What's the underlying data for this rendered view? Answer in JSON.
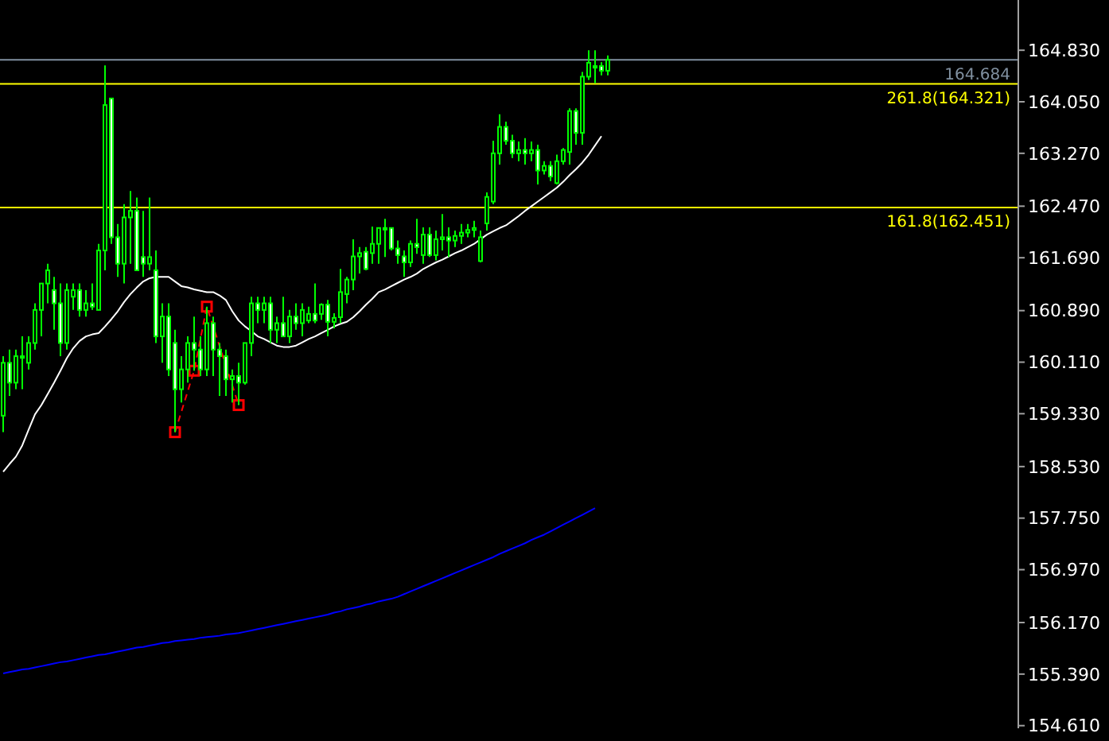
{
  "chart_data": {
    "type": "candlestick",
    "color": "#00ff00",
    "tick_labels": "y",
    "categories": [
      null,
      null,
      null,
      null,
      null,
      null,
      null,
      null,
      null,
      null,
      null,
      null,
      null,
      null,
      null,
      null,
      null,
      null,
      null,
      null,
      null,
      null,
      null,
      null,
      null,
      null,
      null,
      null,
      null,
      null,
      null,
      null,
      null,
      null,
      null,
      null,
      null,
      null,
      null,
      null,
      null,
      null,
      null,
      null,
      null,
      null,
      null,
      null,
      null,
      null,
      null,
      null,
      null,
      null,
      null,
      null,
      null,
      null,
      null,
      null,
      null,
      null,
      null,
      null,
      null,
      null,
      null,
      null,
      null,
      null,
      null,
      null,
      null,
      null,
      null,
      null,
      null,
      null,
      null,
      null,
      null,
      null,
      null,
      null,
      null,
      null,
      null,
      null,
      null,
      null,
      null,
      null,
      null,
      null,
      null,
      null,
      null,
      null,
      null,
      null,
      null,
      null,
      null,
      null,
      null,
      null,
      null,
      null,
      null,
      null,
      null,
      null,
      null,
      null,
      null,
      null,
      null,
      null,
      null,
      null,
      null,
      null,
      null,
      null,
      null,
      null,
      null,
      null,
      null,
      null,
      null,
      null,
      null,
      null,
      null,
      null,
      null,
      null,
      null,
      null,
      null,
      null,
      null,
      null,
      null,
      null,
      null,
      null,
      null,
      null,
      null,
      null,
      null,
      null,
      null,
      null,
      null,
      null,
      null,
      null
    ],
    "ohlc": [
      [
        159.3,
        160.2,
        159.05,
        160.1
      ],
      [
        160.1,
        160.3,
        159.6,
        159.8
      ],
      [
        159.8,
        160.3,
        159.7,
        160.2
      ],
      [
        160.2,
        160.5,
        159.7,
        160.2
      ],
      [
        160.1,
        160.5,
        160.0,
        160.4
      ],
      [
        160.4,
        161.0,
        160.3,
        160.9
      ],
      [
        160.9,
        161.3,
        160.5,
        161.3
      ],
      [
        161.3,
        161.6,
        161.0,
        161.5
      ],
      [
        161.2,
        161.4,
        160.6,
        161.0
      ],
      [
        161.0,
        161.3,
        160.2,
        160.4
      ],
      [
        160.4,
        161.3,
        160.3,
        161.2
      ],
      [
        161.1,
        161.3,
        160.9,
        161.2
      ],
      [
        161.2,
        161.3,
        160.8,
        160.9
      ],
      [
        160.9,
        161.2,
        160.8,
        161.0
      ],
      [
        161.0,
        161.3,
        160.9,
        160.95
      ],
      [
        160.9,
        161.9,
        160.9,
        161.8
      ],
      [
        161.8,
        164.6,
        161.5,
        164.0
      ],
      [
        164.1,
        164.1,
        161.9,
        162.0
      ],
      [
        162.0,
        162.2,
        161.4,
        161.6
      ],
      [
        161.6,
        162.5,
        161.3,
        162.3
      ],
      [
        162.3,
        162.7,
        161.6,
        162.4
      ],
      [
        162.4,
        162.6,
        161.5,
        161.5
      ],
      [
        161.7,
        162.4,
        161.4,
        161.6
      ],
      [
        161.6,
        162.6,
        161.5,
        161.7
      ],
      [
        161.5,
        161.8,
        160.4,
        160.5
      ],
      [
        160.5,
        161.0,
        160.1,
        160.8
      ],
      [
        160.8,
        161.0,
        159.9,
        160.0
      ],
      [
        160.4,
        160.6,
        159.05,
        159.7
      ],
      [
        159.7,
        160.2,
        159.5,
        160.0
      ],
      [
        160.0,
        160.5,
        159.8,
        160.4
      ],
      [
        160.4,
        160.8,
        159.98,
        160.3
      ],
      [
        160.3,
        160.5,
        159.9,
        160.0
      ],
      [
        160.0,
        160.95,
        159.9,
        160.7
      ],
      [
        160.7,
        160.8,
        159.9,
        160.3
      ],
      [
        160.3,
        160.4,
        159.6,
        160.2
      ],
      [
        160.2,
        160.3,
        159.6,
        159.85
      ],
      [
        159.85,
        160.0,
        159.5,
        159.9
      ],
      [
        159.9,
        160.1,
        159.46,
        159.8
      ],
      [
        159.8,
        160.4,
        159.77,
        160.4
      ],
      [
        160.4,
        161.1,
        160.2,
        161.0
      ],
      [
        161.0,
        161.1,
        160.7,
        160.9
      ],
      [
        160.9,
        161.1,
        160.7,
        161.0
      ],
      [
        161.0,
        161.1,
        160.4,
        160.6
      ],
      [
        160.6,
        160.8,
        160.4,
        160.7
      ],
      [
        160.7,
        161.1,
        160.5,
        160.5
      ],
      [
        160.5,
        160.9,
        160.4,
        160.8
      ],
      [
        160.8,
        161.0,
        160.6,
        160.7
      ],
      [
        160.7,
        161.0,
        160.5,
        160.9
      ],
      [
        160.74,
        160.95,
        160.7,
        160.84
      ],
      [
        160.84,
        161.3,
        160.7,
        160.74
      ],
      [
        160.84,
        161.0,
        160.75,
        160.98
      ],
      [
        160.98,
        161.05,
        160.5,
        160.72
      ],
      [
        160.72,
        160.85,
        160.62,
        160.78
      ],
      [
        160.79,
        161.52,
        160.7,
        161.17
      ],
      [
        161.14,
        161.4,
        161.0,
        161.36
      ],
      [
        161.36,
        161.97,
        161.2,
        161.71
      ],
      [
        161.71,
        161.85,
        161.45,
        161.76
      ],
      [
        161.78,
        161.85,
        161.5,
        161.52
      ],
      [
        161.76,
        162.16,
        161.6,
        161.9
      ],
      [
        161.9,
        162.14,
        161.6,
        162.14
      ],
      [
        162.14,
        162.28,
        161.7,
        162.14
      ],
      [
        162.14,
        162.14,
        161.8,
        161.83
      ],
      [
        161.83,
        161.95,
        161.6,
        161.73
      ],
      [
        161.71,
        161.8,
        161.4,
        161.62
      ],
      [
        161.62,
        161.95,
        161.55,
        161.9
      ],
      [
        161.9,
        162.28,
        161.75,
        161.85
      ],
      [
        161.73,
        162.15,
        161.6,
        162.04
      ],
      [
        162.04,
        162.15,
        161.7,
        161.73
      ],
      [
        161.73,
        162.1,
        161.65,
        161.97
      ],
      [
        161.97,
        162.35,
        161.8,
        162.0
      ],
      [
        162.0,
        162.15,
        161.7,
        161.95
      ],
      [
        161.95,
        162.1,
        161.85,
        162.02
      ],
      [
        162.02,
        162.2,
        161.9,
        162.07
      ],
      [
        162.07,
        162.2,
        162.0,
        162.11
      ],
      [
        162.11,
        162.25,
        162.0,
        162.14
      ],
      [
        161.64,
        162.1,
        161.62,
        162.0
      ],
      [
        162.21,
        162.68,
        162.1,
        162.61
      ],
      [
        162.54,
        163.46,
        162.5,
        163.27
      ],
      [
        163.27,
        163.86,
        163.1,
        163.67
      ],
      [
        163.67,
        163.75,
        163.4,
        163.46
      ],
      [
        163.46,
        163.55,
        163.2,
        163.27
      ],
      [
        163.27,
        163.45,
        163.15,
        163.32
      ],
      [
        163.32,
        163.5,
        163.1,
        163.27
      ],
      [
        163.27,
        163.45,
        163.15,
        163.32
      ],
      [
        163.32,
        163.4,
        162.8,
        163.01
      ],
      [
        163.01,
        163.15,
        162.95,
        163.08
      ],
      [
        163.08,
        163.15,
        162.85,
        162.92
      ],
      [
        162.82,
        163.25,
        162.8,
        163.15
      ],
      [
        163.15,
        163.35,
        163.1,
        163.32
      ],
      [
        163.29,
        163.95,
        163.1,
        163.91
      ],
      [
        163.91,
        163.95,
        163.4,
        163.58
      ],
      [
        163.58,
        164.5,
        163.4,
        164.43
      ],
      [
        164.43,
        164.83,
        164.38,
        164.64
      ],
      [
        164.59,
        164.83,
        164.33,
        164.59
      ],
      [
        164.59,
        164.65,
        164.45,
        164.52
      ],
      [
        164.52,
        164.75,
        164.45,
        164.684
      ],
      null,
      null,
      null,
      null,
      null,
      null,
      null,
      null,
      null,
      null,
      null,
      null,
      null,
      null,
      null,
      null,
      null,
      null,
      null,
      null,
      null,
      null,
      null,
      null,
      null,
      null,
      null,
      null,
      null,
      null,
      null,
      null,
      null,
      null,
      null,
      null,
      null,
      null,
      null,
      null,
      null,
      null,
      null,
      null,
      null,
      null,
      null,
      null,
      null,
      null,
      null,
      null,
      null,
      null,
      null,
      null,
      null,
      null,
      null,
      null,
      null,
      null,
      null,
      null
    ],
    "series": [
      {
        "type": "line",
        "color": "#ffffff",
        "line_style": "solid",
        "marker": "none",
        "values": [
          158.45,
          158.57,
          158.68,
          158.85,
          159.09,
          159.32,
          159.46,
          159.63,
          159.8,
          159.98,
          160.17,
          160.32,
          160.43,
          160.5,
          160.53,
          160.55,
          160.65,
          160.76,
          160.88,
          161.02,
          161.14,
          161.24,
          161.33,
          161.38,
          161.4,
          161.4,
          161.4,
          161.33,
          161.26,
          161.24,
          161.21,
          161.19,
          161.17,
          161.17,
          161.12,
          161.05,
          160.88,
          160.74,
          160.65,
          160.58,
          160.5,
          160.46,
          160.41,
          160.36,
          160.34,
          160.34,
          160.36,
          160.41,
          160.46,
          160.5,
          160.55,
          160.6,
          160.65,
          160.69,
          160.72,
          160.79,
          160.88,
          160.98,
          161.07,
          161.17,
          161.21,
          161.26,
          161.31,
          161.36,
          161.4,
          161.45,
          161.52,
          161.57,
          161.62,
          161.66,
          161.71,
          161.76,
          161.8,
          161.85,
          161.9,
          161.97,
          162.04,
          162.09,
          162.14,
          162.18,
          162.25,
          162.32,
          162.4,
          162.47,
          162.54,
          162.61,
          162.68,
          162.75,
          162.84,
          162.94,
          163.03,
          163.13,
          163.25,
          163.39,
          163.53,
          null,
          null,
          null,
          null,
          null,
          null,
          null,
          null,
          null,
          null,
          null,
          null,
          null,
          null,
          null,
          null,
          null,
          null,
          null,
          null,
          null,
          null,
          null,
          null,
          null,
          null,
          null,
          null,
          null,
          null,
          null,
          null,
          null,
          null,
          null,
          null,
          null,
          null,
          null,
          null,
          null,
          null,
          null,
          null,
          null,
          null,
          null,
          null,
          null,
          null,
          null,
          null,
          null,
          null,
          null,
          null,
          null,
          null,
          null,
          null,
          null,
          null,
          null,
          null,
          null
        ]
      },
      {
        "type": "line",
        "color": "#0000ff",
        "line_style": "solid",
        "marker": "none",
        "values": [
          155.4,
          155.42,
          155.44,
          155.46,
          155.47,
          155.49,
          155.51,
          155.53,
          155.55,
          155.57,
          155.58,
          155.6,
          155.62,
          155.64,
          155.66,
          155.68,
          155.69,
          155.71,
          155.73,
          155.75,
          155.77,
          155.79,
          155.8,
          155.82,
          155.84,
          155.86,
          155.87,
          155.89,
          155.9,
          155.91,
          155.92,
          155.94,
          155.95,
          155.96,
          155.97,
          155.99,
          156.0,
          156.01,
          156.03,
          156.05,
          156.07,
          156.09,
          156.11,
          156.13,
          156.15,
          156.17,
          156.19,
          156.21,
          156.23,
          156.25,
          156.27,
          156.29,
          156.32,
          156.34,
          156.37,
          156.39,
          156.41,
          156.44,
          156.46,
          156.49,
          156.51,
          156.53,
          156.56,
          156.6,
          156.64,
          156.68,
          156.72,
          156.76,
          156.8,
          156.84,
          156.88,
          156.92,
          156.96,
          157.0,
          157.04,
          157.08,
          157.12,
          157.16,
          157.21,
          157.25,
          157.29,
          157.33,
          157.37,
          157.42,
          157.46,
          157.5,
          157.55,
          157.6,
          157.65,
          157.7,
          157.75,
          157.8,
          157.85,
          157.9,
          null,
          null,
          null,
          null,
          null,
          null,
          null,
          null,
          null,
          null,
          null,
          null,
          null,
          null,
          null,
          null,
          null,
          null,
          null,
          null,
          null,
          null,
          null,
          null,
          null,
          null,
          null,
          null,
          null,
          null,
          null,
          null,
          null,
          null,
          null,
          null,
          null,
          null,
          null,
          null,
          null,
          null,
          null,
          null,
          null,
          null,
          null,
          null,
          null,
          null,
          null,
          null,
          null,
          null,
          null,
          null,
          null,
          null,
          null,
          null,
          null,
          null,
          null,
          null,
          null,
          null
        ]
      },
      {
        "type": "line",
        "color": "#ff0000",
        "line_style": "dashed",
        "marker": "square",
        "values": [
          null,
          null,
          null,
          null,
          null,
          null,
          null,
          null,
          null,
          null,
          null,
          null,
          null,
          null,
          null,
          null,
          null,
          null,
          null,
          null,
          null,
          null,
          null,
          null,
          null,
          null,
          null,
          159.05,
          null,
          null,
          159.98,
          null,
          160.95,
          null,
          null,
          null,
          null,
          159.46,
          null,
          null,
          null,
          null,
          null,
          null,
          null,
          null,
          null,
          null,
          null,
          null,
          null,
          null,
          null,
          null,
          null,
          null,
          null,
          null,
          null,
          null,
          null,
          null,
          null,
          null,
          null,
          null,
          null,
          null,
          null,
          null,
          null,
          null,
          null,
          null,
          null,
          null,
          null,
          null,
          null,
          null,
          null,
          null,
          null,
          null,
          null,
          null,
          null,
          null,
          null,
          null,
          null,
          null,
          null,
          null,
          null,
          null,
          null,
          null,
          null,
          null,
          null,
          null,
          null,
          null,
          null,
          null,
          null,
          null,
          null,
          null,
          null,
          null,
          null,
          null,
          null,
          null,
          null,
          null,
          null,
          null,
          null,
          null,
          null,
          null,
          null,
          null,
          null,
          null,
          null,
          null,
          null,
          null,
          null,
          null,
          null,
          null,
          null,
          null,
          null,
          null,
          null,
          null,
          null,
          null,
          null,
          null,
          null,
          null,
          null,
          null,
          null,
          null,
          null,
          null,
          null,
          null,
          null,
          null,
          null,
          null
        ]
      }
    ],
    "ylim": [
      154.57,
      165.59
    ],
    "yticks": [
      {
        "value": 164.83,
        "label": "164.830"
      },
      {
        "value": 164.05,
        "label": "164.050"
      },
      {
        "value": 163.27,
        "label": "163.270"
      },
      {
        "value": 162.47,
        "label": "162.470"
      },
      {
        "value": 161.69,
        "label": "161.690"
      },
      {
        "value": 160.89,
        "label": "160.890"
      },
      {
        "value": 160.11,
        "label": "160.110"
      },
      {
        "value": 159.33,
        "label": "159.330"
      },
      {
        "value": 158.53,
        "label": "158.530"
      },
      {
        "value": 157.75,
        "label": "157.750"
      },
      {
        "value": 156.97,
        "label": "156.970"
      },
      {
        "value": 156.17,
        "label": "156.170"
      },
      {
        "value": 155.39,
        "label": "155.390"
      },
      {
        "value": 154.61,
        "label": "154.610"
      }
    ],
    "ref_lines": [
      {
        "axis": "y",
        "value": 164.321,
        "label": "261.8(164.321)",
        "color": "#ffff00"
      },
      {
        "axis": "y",
        "value": 162.451,
        "label": "161.8(162.451)",
        "color": "#ffff00"
      },
      {
        "axis": "y",
        "value": 164.684,
        "label": "164.684",
        "color": "#8090a0"
      }
    ]
  }
}
